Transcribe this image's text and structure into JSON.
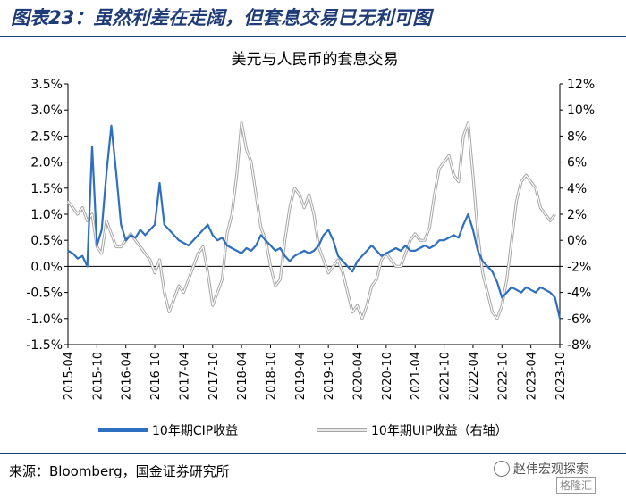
{
  "figure": {
    "title": "图表23：虽然利差在走阔，但套息交易已无利可图",
    "source": "来源：Bloomberg，国金证券研究所",
    "watermark": "赵伟宏观探索",
    "brand": "格隆汇"
  },
  "chart_data": {
    "type": "line",
    "title": "美元与人民币的套息交易",
    "x_range": [
      "2015-04",
      "2023-10"
    ],
    "x_ticks": [
      "2015-04",
      "2015-10",
      "2016-04",
      "2016-10",
      "2017-04",
      "2017-10",
      "2018-04",
      "2018-10",
      "2019-04",
      "2019-10",
      "2020-04",
      "2020-10",
      "2021-04",
      "2021-10",
      "2022-04",
      "2022-10",
      "2023-04",
      "2023-10"
    ],
    "y_left": {
      "range": [
        -1.5,
        3.5
      ],
      "ticks": [
        -1.5,
        -1.0,
        -0.5,
        0.0,
        0.5,
        1.0,
        1.5,
        2.0,
        2.5,
        3.0,
        3.5
      ],
      "tick_labels": [
        "-1.5%",
        "-1.0%",
        "-0.5%",
        "0.0%",
        "0.5%",
        "1.0%",
        "1.5%",
        "2.0%",
        "2.5%",
        "3.0%",
        "3.5%"
      ]
    },
    "y_right": {
      "range": [
        -8,
        12
      ],
      "ticks": [
        -8,
        -6,
        -4,
        -2,
        0,
        2,
        4,
        6,
        8,
        10,
        12
      ],
      "tick_labels": [
        "-8%",
        "-6%",
        "-4%",
        "-2%",
        "0%",
        "2%",
        "4%",
        "6%",
        "8%",
        "10%",
        "12%"
      ]
    },
    "grid": false,
    "legend_position": "bottom",
    "series": [
      {
        "name": "10年期CIP收益",
        "axis": "left",
        "color": "#2e6fbf",
        "points": [
          [
            "2015-04",
            0.3
          ],
          [
            "2015-05",
            0.25
          ],
          [
            "2015-06",
            0.15
          ],
          [
            "2015-07",
            0.2
          ],
          [
            "2015-08",
            0.0
          ],
          [
            "2015-09",
            2.3
          ],
          [
            "2015-10",
            0.4
          ],
          [
            "2015-11",
            0.7
          ],
          [
            "2015-12",
            1.8
          ],
          [
            "2016-01",
            2.7
          ],
          [
            "2016-02",
            1.8
          ],
          [
            "2016-03",
            0.8
          ],
          [
            "2016-04",
            0.5
          ],
          [
            "2016-05",
            0.6
          ],
          [
            "2016-06",
            0.55
          ],
          [
            "2016-07",
            0.7
          ],
          [
            "2016-08",
            0.6
          ],
          [
            "2016-09",
            0.7
          ],
          [
            "2016-10",
            0.8
          ],
          [
            "2016-11",
            1.6
          ],
          [
            "2016-12",
            0.8
          ],
          [
            "2017-01",
            0.7
          ],
          [
            "2017-02",
            0.6
          ],
          [
            "2017-03",
            0.5
          ],
          [
            "2017-04",
            0.45
          ],
          [
            "2017-05",
            0.4
          ],
          [
            "2017-06",
            0.5
          ],
          [
            "2017-07",
            0.6
          ],
          [
            "2017-08",
            0.7
          ],
          [
            "2017-09",
            0.8
          ],
          [
            "2017-10",
            0.6
          ],
          [
            "2017-11",
            0.5
          ],
          [
            "2017-12",
            0.55
          ],
          [
            "2018-01",
            0.4
          ],
          [
            "2018-02",
            0.35
          ],
          [
            "2018-03",
            0.3
          ],
          [
            "2018-04",
            0.25
          ],
          [
            "2018-05",
            0.35
          ],
          [
            "2018-06",
            0.3
          ],
          [
            "2018-07",
            0.4
          ],
          [
            "2018-08",
            0.6
          ],
          [
            "2018-09",
            0.5
          ],
          [
            "2018-10",
            0.4
          ],
          [
            "2018-11",
            0.3
          ],
          [
            "2018-12",
            0.35
          ],
          [
            "2019-01",
            0.2
          ],
          [
            "2019-02",
            0.1
          ],
          [
            "2019-03",
            0.2
          ],
          [
            "2019-04",
            0.25
          ],
          [
            "2019-05",
            0.3
          ],
          [
            "2019-06",
            0.25
          ],
          [
            "2019-07",
            0.3
          ],
          [
            "2019-08",
            0.4
          ],
          [
            "2019-09",
            0.6
          ],
          [
            "2019-10",
            0.7
          ],
          [
            "2019-11",
            0.5
          ],
          [
            "2019-12",
            0.2
          ],
          [
            "2020-01",
            0.1
          ],
          [
            "2020-02",
            0.0
          ],
          [
            "2020-03",
            -0.1
          ],
          [
            "2020-04",
            0.1
          ],
          [
            "2020-05",
            0.2
          ],
          [
            "2020-06",
            0.3
          ],
          [
            "2020-07",
            0.4
          ],
          [
            "2020-08",
            0.3
          ],
          [
            "2020-09",
            0.2
          ],
          [
            "2020-10",
            0.25
          ],
          [
            "2020-11",
            0.3
          ],
          [
            "2020-12",
            0.35
          ],
          [
            "2021-01",
            0.3
          ],
          [
            "2021-02",
            0.4
          ],
          [
            "2021-03",
            0.3
          ],
          [
            "2021-04",
            0.3
          ],
          [
            "2021-05",
            0.35
          ],
          [
            "2021-06",
            0.4
          ],
          [
            "2021-07",
            0.35
          ],
          [
            "2021-08",
            0.4
          ],
          [
            "2021-09",
            0.5
          ],
          [
            "2021-10",
            0.5
          ],
          [
            "2021-11",
            0.55
          ],
          [
            "2021-12",
            0.6
          ],
          [
            "2022-01",
            0.55
          ],
          [
            "2022-02",
            0.8
          ],
          [
            "2022-03",
            1.0
          ],
          [
            "2022-04",
            0.7
          ],
          [
            "2022-05",
            0.3
          ],
          [
            "2022-06",
            0.1
          ],
          [
            "2022-07",
            0.0
          ],
          [
            "2022-08",
            -0.1
          ],
          [
            "2022-09",
            -0.3
          ],
          [
            "2022-10",
            -0.6
          ],
          [
            "2022-11",
            -0.5
          ],
          [
            "2022-12",
            -0.4
          ],
          [
            "2023-01",
            -0.45
          ],
          [
            "2023-02",
            -0.5
          ],
          [
            "2023-03",
            -0.4
          ],
          [
            "2023-04",
            -0.45
          ],
          [
            "2023-05",
            -0.5
          ],
          [
            "2023-06",
            -0.4
          ],
          [
            "2023-07",
            -0.45
          ],
          [
            "2023-08",
            -0.5
          ],
          [
            "2023-09",
            -0.6
          ],
          [
            "2023-10",
            -1.0
          ]
        ]
      },
      {
        "name": "10年期UIP收益（右轴）",
        "axis": "right",
        "color": "#a6a6a6",
        "points": [
          [
            "2015-04",
            3.0
          ],
          [
            "2015-05",
            2.5
          ],
          [
            "2015-06",
            2.0
          ],
          [
            "2015-07",
            2.5
          ],
          [
            "2015-08",
            1.5
          ],
          [
            "2015-09",
            2.0
          ],
          [
            "2015-10",
            -0.5
          ],
          [
            "2015-11",
            -1.0
          ],
          [
            "2015-12",
            1.5
          ],
          [
            "2016-01",
            0.5
          ],
          [
            "2016-02",
            -0.5
          ],
          [
            "2016-03",
            -0.5
          ],
          [
            "2016-04",
            0.0
          ],
          [
            "2016-05",
            0.5
          ],
          [
            "2016-06",
            0.0
          ],
          [
            "2016-07",
            -0.5
          ],
          [
            "2016-08",
            -1.0
          ],
          [
            "2016-09",
            -1.5
          ],
          [
            "2016-10",
            -2.5
          ],
          [
            "2016-11",
            -1.5
          ],
          [
            "2016-12",
            -4.0
          ],
          [
            "2017-01",
            -5.5
          ],
          [
            "2017-02",
            -4.5
          ],
          [
            "2017-03",
            -3.5
          ],
          [
            "2017-04",
            -4.0
          ],
          [
            "2017-05",
            -3.0
          ],
          [
            "2017-06",
            -2.0
          ],
          [
            "2017-07",
            -1.0
          ],
          [
            "2017-08",
            -0.5
          ],
          [
            "2017-09",
            -2.5
          ],
          [
            "2017-10",
            -5.0
          ],
          [
            "2017-11",
            -4.0
          ],
          [
            "2017-12",
            -3.0
          ],
          [
            "2018-01",
            0.5
          ],
          [
            "2018-02",
            2.0
          ],
          [
            "2018-03",
            5.0
          ],
          [
            "2018-04",
            9.0
          ],
          [
            "2018-05",
            7.0
          ],
          [
            "2018-06",
            6.0
          ],
          [
            "2018-07",
            3.5
          ],
          [
            "2018-08",
            1.0
          ],
          [
            "2018-09",
            0.0
          ],
          [
            "2018-10",
            -2.0
          ],
          [
            "2018-11",
            -3.5
          ],
          [
            "2018-12",
            -3.0
          ],
          [
            "2019-01",
            0.0
          ],
          [
            "2019-02",
            2.5
          ],
          [
            "2019-03",
            4.0
          ],
          [
            "2019-04",
            3.5
          ],
          [
            "2019-05",
            2.5
          ],
          [
            "2019-06",
            3.5
          ],
          [
            "2019-07",
            2.0
          ],
          [
            "2019-08",
            -0.5
          ],
          [
            "2019-09",
            -1.5
          ],
          [
            "2019-10",
            -2.5
          ],
          [
            "2019-11",
            -2.0
          ],
          [
            "2019-12",
            -1.5
          ],
          [
            "2020-01",
            -2.5
          ],
          [
            "2020-02",
            -4.0
          ],
          [
            "2020-03",
            -5.5
          ],
          [
            "2020-04",
            -5.0
          ],
          [
            "2020-05",
            -6.0
          ],
          [
            "2020-06",
            -5.0
          ],
          [
            "2020-07",
            -3.5
          ],
          [
            "2020-08",
            -3.0
          ],
          [
            "2020-09",
            -1.5
          ],
          [
            "2020-10",
            -1.0
          ],
          [
            "2020-11",
            -1.5
          ],
          [
            "2020-12",
            -2.0
          ],
          [
            "2021-01",
            -2.0
          ],
          [
            "2021-02",
            -1.0
          ],
          [
            "2021-03",
            0.0
          ],
          [
            "2021-04",
            0.5
          ],
          [
            "2021-05",
            0.0
          ],
          [
            "2021-06",
            0.0
          ],
          [
            "2021-07",
            1.0
          ],
          [
            "2021-08",
            3.5
          ],
          [
            "2021-09",
            5.5
          ],
          [
            "2021-10",
            6.0
          ],
          [
            "2021-11",
            6.5
          ],
          [
            "2021-12",
            5.0
          ],
          [
            "2022-01",
            4.5
          ],
          [
            "2022-02",
            8.0
          ],
          [
            "2022-03",
            9.0
          ],
          [
            "2022-04",
            5.0
          ],
          [
            "2022-05",
            0.5
          ],
          [
            "2022-06",
            -2.5
          ],
          [
            "2022-07",
            -4.0
          ],
          [
            "2022-08",
            -5.5
          ],
          [
            "2022-09",
            -6.0
          ],
          [
            "2022-10",
            -5.0
          ],
          [
            "2022-11",
            -3.0
          ],
          [
            "2022-12",
            0.0
          ],
          [
            "2023-01",
            3.0
          ],
          [
            "2023-02",
            4.5
          ],
          [
            "2023-03",
            5.0
          ],
          [
            "2023-04",
            4.5
          ],
          [
            "2023-05",
            4.0
          ],
          [
            "2023-06",
            2.5
          ],
          [
            "2023-07",
            2.0
          ],
          [
            "2023-08",
            1.5
          ],
          [
            "2023-09",
            2.0
          ]
        ]
      }
    ]
  }
}
